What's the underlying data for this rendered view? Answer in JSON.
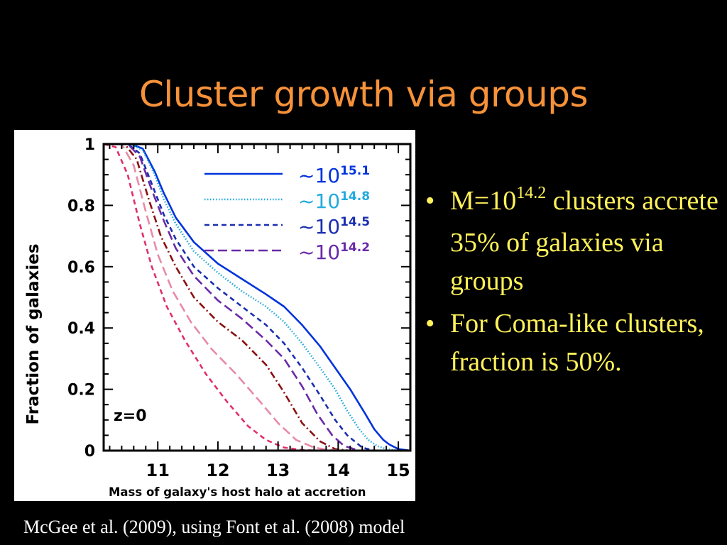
{
  "slide": {
    "title": "Cluster growth via groups",
    "caption": "McGee et al. (2009), using Font et al. (2008) model",
    "bullets": [
      {
        "prefix": "M=10",
        "sup": "14.2",
        "text": "clusters accrete 35% of galaxies via groups"
      },
      {
        "prefix": "",
        "sup": "",
        "text": "For Coma-like clusters, fraction is 50%."
      }
    ],
    "bullet_glyph": "•"
  },
  "colors": {
    "background": "#000000",
    "title": "#f7923a",
    "bullet_text": "#fff25a",
    "caption": "#ffffff"
  },
  "chart_data": {
    "type": "line",
    "xlabel": "Mass of galaxy's host halo at accretion",
    "ylabel": "Fraction of galaxies",
    "annotation": "z=0",
    "xlim": [
      10.1,
      15.2
    ],
    "ylim": [
      0,
      1
    ],
    "x_ticks": [
      11,
      12,
      13,
      14,
      15
    ],
    "y_ticks": [
      0,
      0.2,
      0.4,
      0.6,
      0.8,
      1
    ],
    "y_tick_labels": [
      "0",
      "0.2",
      "0.4",
      "0.6",
      "0.8",
      "1"
    ],
    "grid": false,
    "legend_position": "top-right",
    "series": [
      {
        "name": "~10^15.1",
        "legend_base": "~10",
        "legend_exp": "15.1",
        "color": "#0033dd",
        "dash": "solid",
        "x": [
          10.1,
          10.55,
          10.75,
          10.95,
          11.1,
          11.3,
          11.6,
          12.0,
          12.4,
          12.8,
          13.1,
          13.4,
          13.7,
          13.95,
          14.2,
          14.45,
          14.6,
          14.75,
          14.85,
          15.0,
          15.2
        ],
        "y": [
          1.0,
          1.0,
          0.985,
          0.91,
          0.84,
          0.76,
          0.68,
          0.61,
          0.56,
          0.51,
          0.47,
          0.41,
          0.34,
          0.27,
          0.2,
          0.12,
          0.07,
          0.035,
          0.02,
          0.005,
          0.0
        ]
      },
      {
        "name": "~10^14.8",
        "legend_base": "~10",
        "legend_exp": "14.8",
        "color": "#22aadd",
        "dash": "dotted",
        "x": [
          10.1,
          10.55,
          10.75,
          10.95,
          11.1,
          11.3,
          11.6,
          12.0,
          12.4,
          12.8,
          13.1,
          13.4,
          13.7,
          13.95,
          14.15,
          14.35,
          14.5,
          14.65,
          14.8,
          15.0
        ],
        "y": [
          1.0,
          1.0,
          0.98,
          0.9,
          0.82,
          0.74,
          0.65,
          0.58,
          0.52,
          0.47,
          0.42,
          0.35,
          0.27,
          0.2,
          0.13,
          0.07,
          0.035,
          0.015,
          0.005,
          0.0
        ]
      },
      {
        "name": "~10^14.5",
        "legend_base": "~10",
        "legend_exp": "14.5",
        "color": "#1a2fb0",
        "dash": "short-dash",
        "x": [
          10.1,
          10.5,
          10.7,
          10.9,
          11.1,
          11.3,
          11.6,
          12.0,
          12.4,
          12.8,
          13.1,
          13.4,
          13.7,
          13.95,
          14.15,
          14.4,
          14.6
        ],
        "y": [
          1.0,
          1.0,
          0.97,
          0.87,
          0.77,
          0.69,
          0.6,
          0.53,
          0.47,
          0.41,
          0.35,
          0.27,
          0.18,
          0.1,
          0.05,
          0.01,
          0.0
        ]
      },
      {
        "name": "~10^14.2",
        "legend_base": "~10",
        "legend_exp": "14.2",
        "color": "#6a2aa8",
        "dash": "long-dash",
        "x": [
          10.1,
          10.5,
          10.7,
          10.9,
          11.1,
          11.3,
          11.6,
          12.0,
          12.4,
          12.8,
          13.1,
          13.4,
          13.65,
          13.9,
          14.1,
          14.35
        ],
        "y": [
          1.0,
          1.0,
          0.96,
          0.85,
          0.75,
          0.66,
          0.57,
          0.49,
          0.43,
          0.36,
          0.3,
          0.21,
          0.12,
          0.05,
          0.015,
          0.0
        ]
      },
      {
        "name": "",
        "color": "#8b1010",
        "dash": "dash-dot",
        "x": [
          10.1,
          10.45,
          10.65,
          10.85,
          11.05,
          11.3,
          11.6,
          12.0,
          12.4,
          12.8,
          13.1,
          13.4,
          13.7,
          13.95,
          14.2
        ],
        "y": [
          1.0,
          1.0,
          0.95,
          0.82,
          0.7,
          0.6,
          0.5,
          0.42,
          0.36,
          0.28,
          0.19,
          0.09,
          0.03,
          0.005,
          0.0
        ]
      },
      {
        "name": "",
        "color": "#e88aa6",
        "dash": "long-dash",
        "x": [
          10.1,
          10.4,
          10.6,
          10.8,
          11.0,
          11.25,
          11.55,
          11.9,
          12.3,
          12.7,
          13.0,
          13.3,
          13.6,
          13.85,
          14.1
        ],
        "y": [
          1.0,
          1.0,
          0.93,
          0.78,
          0.64,
          0.52,
          0.42,
          0.33,
          0.25,
          0.16,
          0.09,
          0.035,
          0.01,
          0.002,
          0.0
        ]
      },
      {
        "name": "",
        "color": "#e0306a",
        "dash": "short-dash",
        "x": [
          10.1,
          10.3,
          10.5,
          10.7,
          10.9,
          11.15,
          11.45,
          11.8,
          12.15,
          12.5,
          12.8,
          13.1,
          13.4,
          13.7,
          13.9
        ],
        "y": [
          1.0,
          0.99,
          0.9,
          0.74,
          0.6,
          0.47,
          0.36,
          0.25,
          0.16,
          0.08,
          0.035,
          0.01,
          0.002,
          0.0,
          0.0
        ]
      }
    ]
  }
}
